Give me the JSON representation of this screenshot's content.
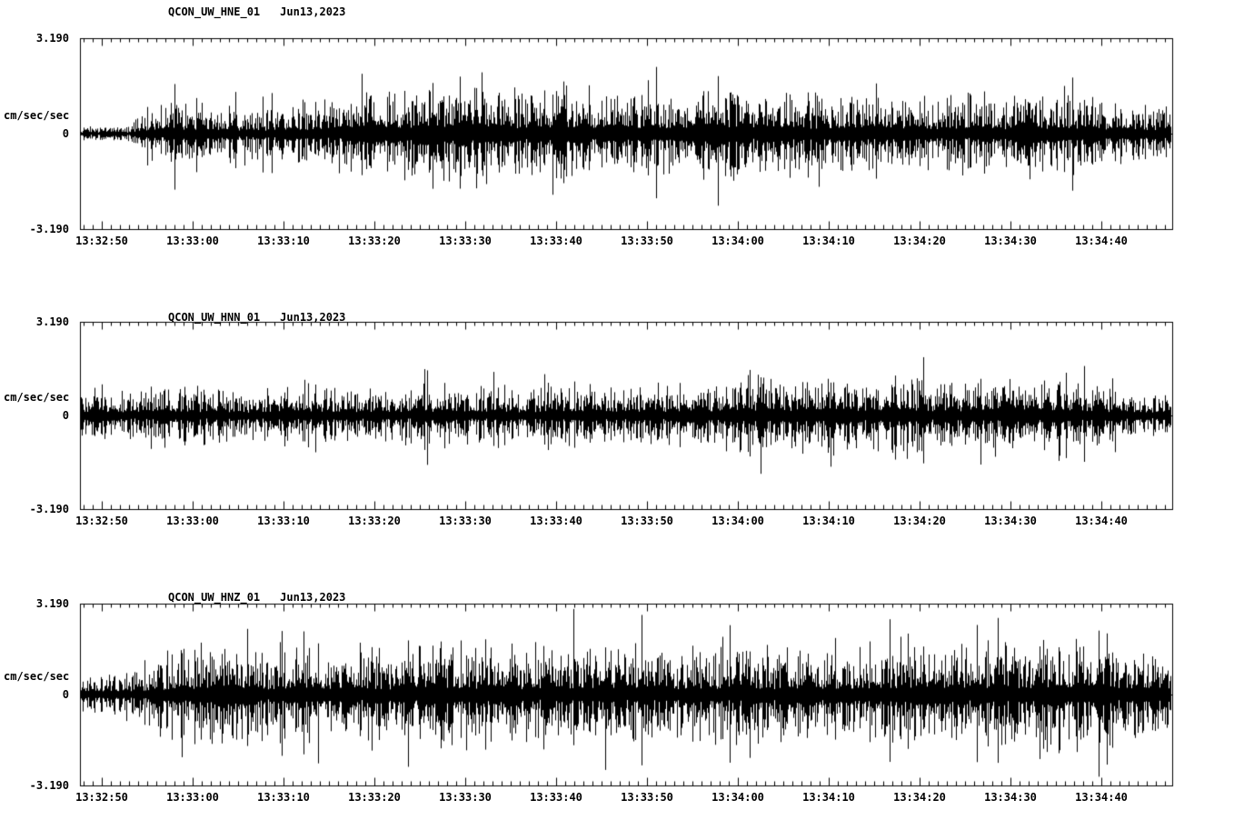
{
  "page": {
    "background": "#ffffff",
    "trace_color": "#000000"
  },
  "x_ticks": [
    "13:32:50",
    "13:33:00",
    "13:33:10",
    "13:33:20",
    "13:33:30",
    "13:33:40",
    "13:33:50",
    "13:34:00",
    "13:34:10",
    "13:34:20",
    "13:34:30",
    "13:34:40"
  ],
  "charts": [
    {
      "station_label": "QCON_UW_HNE_01",
      "date_label": "Jun13,2023",
      "ylabel": "cm/sec/sec",
      "y_max_label": "3.190",
      "y_zero_label": "0",
      "y_min_label": "-3.190"
    },
    {
      "station_label": "QCON_UW_HNN_01",
      "date_label": "Jun13,2023",
      "ylabel": "cm/sec/sec",
      "y_max_label": "3.190",
      "y_zero_label": "0",
      "y_min_label": "-3.190"
    },
    {
      "station_label": "QCON_UW_HNZ_01",
      "date_label": "Jun13,2023",
      "ylabel": "cm/sec/sec",
      "y_max_label": "3.190",
      "y_zero_label": "0",
      "y_min_label": "-3.190"
    }
  ],
  "chart_data": [
    {
      "type": "line",
      "title": "QCON_UW_HNE_01",
      "date": "Jun13,2023",
      "ylabel": "cm/sec/sec",
      "ylim": [
        -3.19,
        3.19
      ],
      "y_tick_labels": [
        "3.190",
        "0",
        "-3.190"
      ],
      "x_tick_labels": [
        "13:32:50",
        "13:33:00",
        "13:33:10",
        "13:33:20",
        "13:33:30",
        "13:33:40",
        "13:33:50",
        "13:34:00",
        "13:34:10",
        "13:34:20",
        "13:34:30",
        "13:34:40"
      ],
      "x_span_seconds": 120,
      "amplitude_envelope": {
        "sample_interval_seconds": 5,
        "values": [
          0.3,
          0.35,
          1.3,
          1.1,
          0.9,
          1.2,
          1.5,
          1.7,
          2.0,
          1.8,
          1.6,
          1.7,
          1.5,
          1.6,
          1.9,
          1.6,
          1.5,
          1.7,
          1.5,
          1.4,
          1.5,
          1.4,
          1.6,
          1.1,
          0.9
        ]
      }
    },
    {
      "type": "line",
      "title": "QCON_UW_HNN_01",
      "date": "Jun13,2023",
      "ylabel": "cm/sec/sec",
      "ylim": [
        -3.19,
        3.19
      ],
      "y_tick_labels": [
        "3.190",
        "0",
        "-3.190"
      ],
      "x_tick_labels": [
        "13:32:50",
        "13:33:00",
        "13:33:10",
        "13:33:20",
        "13:33:30",
        "13:33:40",
        "13:33:50",
        "13:34:00",
        "13:34:10",
        "13:34:20",
        "13:34:30",
        "13:34:40"
      ],
      "x_span_seconds": 120,
      "amplitude_envelope": {
        "sample_interval_seconds": 5,
        "values": [
          0.9,
          1.0,
          1.3,
          1.0,
          0.9,
          1.0,
          1.1,
          1.0,
          1.2,
          1.0,
          1.1,
          1.2,
          1.1,
          1.2,
          1.4,
          1.5,
          1.3,
          1.4,
          1.6,
          1.3,
          1.4,
          1.5,
          1.2,
          0.9,
          0.9
        ]
      }
    },
    {
      "type": "line",
      "title": "QCON_UW_HNZ_01",
      "date": "Jun13,2023",
      "ylabel": "cm/sec/sec",
      "ylim": [
        -3.19,
        3.19
      ],
      "y_tick_labels": [
        "3.190",
        "0",
        "-3.190"
      ],
      "x_tick_labels": [
        "13:32:50",
        "13:33:00",
        "13:33:10",
        "13:33:20",
        "13:33:30",
        "13:33:40",
        "13:33:50",
        "13:34:00",
        "13:34:10",
        "13:34:20",
        "13:34:30",
        "13:34:40"
      ],
      "x_span_seconds": 120,
      "amplitude_envelope": {
        "sample_interval_seconds": 5,
        "values": [
          0.7,
          0.9,
          1.8,
          2.0,
          1.6,
          1.8,
          1.9,
          1.7,
          2.1,
          2.0,
          1.8,
          2.0,
          1.9,
          1.8,
          2.0,
          1.9,
          1.8,
          1.9,
          2.0,
          1.9,
          2.1,
          2.0,
          2.3,
          1.9,
          1.4
        ]
      }
    }
  ]
}
